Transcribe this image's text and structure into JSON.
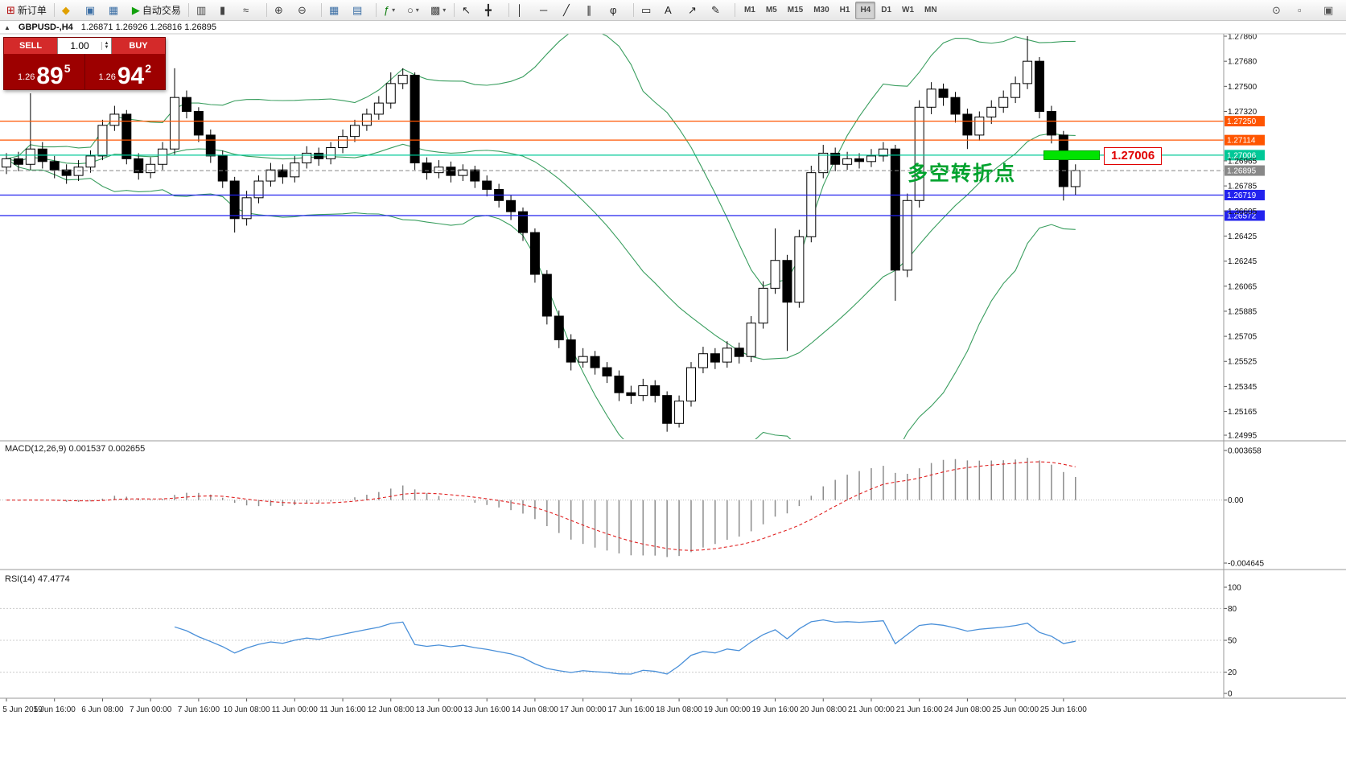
{
  "toolbar": {
    "groups": [
      {
        "items": [
          {
            "name": "new-order-button",
            "glyph": "⊞",
            "glyph_color": "#b00000",
            "label": "新订单"
          }
        ]
      },
      {
        "items": [
          {
            "name": "community-icon",
            "glyph": "◆",
            "glyph_color": "#e0a000"
          },
          {
            "name": "profiles-icon",
            "glyph": "▣",
            "glyph_color": "#3a6ea5"
          },
          {
            "name": "data-window-icon",
            "glyph": "▦",
            "glyph_color": "#3a6ea5"
          },
          {
            "name": "auto-trading-button",
            "glyph": "▶",
            "glyph_color": "#13a10e",
            "label": "自动交易"
          }
        ]
      },
      {
        "items": [
          {
            "name": "bar-chart-icon",
            "glyph": "▥",
            "glyph_color": "#444444"
          },
          {
            "name": "candlestick-chart-icon",
            "glyph": "▮",
            "glyph_color": "#444444"
          },
          {
            "name": "line-chart-icon",
            "glyph": "≈",
            "glyph_color": "#444444"
          }
        ]
      },
      {
        "items": [
          {
            "name": "zoom-in-icon",
            "glyph": "⊕",
            "glyph_color": "#444444"
          },
          {
            "name": "zoom-out-icon",
            "glyph": "⊖",
            "glyph_color": "#444444"
          }
        ]
      },
      {
        "items": [
          {
            "name": "tile-windows-icon",
            "glyph": "▦",
            "glyph_color": "#3a6ea5"
          },
          {
            "name": "cascade-windows-icon",
            "glyph": "▤",
            "glyph_color": "#3a6ea5"
          }
        ]
      },
      {
        "items": [
          {
            "name": "indicators-icon",
            "glyph": "ƒ",
            "glyph_color": "#0a7a0a",
            "caret": true
          },
          {
            "name": "periods-icon",
            "glyph": "○",
            "glyph_color": "#444444",
            "caret": true
          },
          {
            "name": "templates-icon",
            "glyph": "▩",
            "glyph_color": "#444444",
            "caret": true
          }
        ]
      },
      {
        "items": [
          {
            "name": "cursor-icon",
            "glyph": "↖",
            "glyph_color": "#222222"
          },
          {
            "name": "crosshair-icon",
            "glyph": "╋",
            "glyph_color": "#222222"
          }
        ]
      },
      {
        "items": [
          {
            "name": "vertical-line-icon",
            "glyph": "│",
            "glyph_color": "#222222"
          },
          {
            "name": "horizontal-line-icon",
            "glyph": "─",
            "glyph_color": "#222222"
          },
          {
            "name": "trendline-icon",
            "glyph": "╱",
            "glyph_color": "#222222"
          },
          {
            "name": "equidistant-channel-icon",
            "glyph": "∥",
            "glyph_color": "#222222"
          },
          {
            "name": "fibonacci-icon",
            "glyph": "φ",
            "glyph_color": "#222222"
          }
        ]
      },
      {
        "items": [
          {
            "name": "shapes-icon",
            "glyph": "▭",
            "glyph_color": "#222222"
          },
          {
            "name": "text-icon",
            "glyph": "A",
            "glyph_color": "#222222"
          },
          {
            "name": "arrows-icon",
            "glyph": "↗",
            "glyph_color": "#222222"
          },
          {
            "name": "draw-icon",
            "glyph": "✎",
            "glyph_color": "#222222"
          }
        ]
      }
    ],
    "timeframes": [
      "M1",
      "M5",
      "M15",
      "M30",
      "H1",
      "H4",
      "D1",
      "W1",
      "MN"
    ],
    "active_timeframe": "H4",
    "right_icons": [
      {
        "name": "search-icon",
        "glyph": "⊙"
      },
      {
        "name": "panel-toggle-icon",
        "glyph": "▫"
      },
      {
        "name": "settings-icon",
        "glyph": "▣"
      }
    ]
  },
  "quote_header": {
    "collapse_glyph": "▲",
    "symbol": "GBPUSD-,H4",
    "ohlc": "1.26871 1.26926 1.26816 1.26895"
  },
  "trade_panel": {
    "sell_label": "SELL",
    "buy_label": "BUY",
    "lot": "1.00",
    "spin_up": "▲",
    "spin_down": "▼",
    "sell_small": "1.26",
    "sell_big": "89",
    "sell_sup": "5",
    "buy_small": "1.26",
    "buy_big": "94",
    "buy_sup": "2"
  },
  "annotations": {
    "turning_point_text": "多空转折点",
    "price_callout": "1.27006"
  },
  "macd_panel": {
    "label": "MACD(12,26,9) 0.001537 0.002655",
    "axis": [
      {
        "v": 0.003658,
        "t": "0.003658"
      },
      {
        "v": 0,
        "t": "0.00"
      },
      {
        "v": -0.004645,
        "t": "-0.004645"
      }
    ]
  },
  "rsi_panel": {
    "label": "RSI(14) 47.4774",
    "axis": [
      {
        "v": 100,
        "t": "100"
      },
      {
        "v": 80,
        "t": "80"
      },
      {
        "v": 50,
        "t": "50"
      },
      {
        "v": 20,
        "t": "20"
      },
      {
        "v": 0,
        "t": "0"
      }
    ],
    "levels": [
      80,
      50,
      20
    ]
  },
  "chart_data": {
    "type": "candlestick",
    "symbol": "GBPUSD-",
    "timeframe": "H4",
    "colors": {
      "bull": "#ffffff",
      "bear": "#000000",
      "outline": "#000000",
      "bollinger": "#3a9e5f",
      "macd_hist": "#8c8c8c",
      "macd_signal": "#e02020",
      "rsi_line": "#4a90d9",
      "current_price": "#888888"
    },
    "axis_labels": [
      "1.27860",
      "1.27680",
      "1.27500",
      "1.27320",
      "1.26965",
      "1.26785",
      "1.26605",
      "1.26425",
      "1.26245",
      "1.26065",
      "1.25885",
      "1.25705",
      "1.25525",
      "1.25345",
      "1.25165",
      "1.24995"
    ],
    "hlines": [
      {
        "price": 1.2725,
        "color": "#ff5500",
        "tag": "1.27250",
        "style": "solid"
      },
      {
        "price": 1.27114,
        "color": "#ff5500",
        "tag": "1.27114",
        "style": "solid"
      },
      {
        "price": 1.27006,
        "color": "#00c897",
        "tag": "1.27006",
        "style": "solid"
      },
      {
        "price": 1.26895,
        "color": "#888888",
        "tag": "1.26895",
        "style": "current"
      },
      {
        "price": 1.26719,
        "color": "#2222ee",
        "tag": "1.26719",
        "style": "solid"
      },
      {
        "price": 1.26572,
        "color": "#2222ee",
        "tag": "1.26572",
        "style": "solid"
      }
    ],
    "time_labels": [
      "5 Jun 2019",
      "5 Jun 16:00",
      "6 Jun 08:00",
      "7 Jun 00:00",
      "7 Jun 16:00",
      "10 Jun 08:00",
      "11 Jun 00:00",
      "11 Jun 16:00",
      "12 Jun 08:00",
      "13 Jun 00:00",
      "13 Jun 16:00",
      "14 Jun 08:00",
      "17 Jun 00:00",
      "17 Jun 16:00",
      "18 Jun 08:00",
      "19 Jun 00:00",
      "19 Jun 16:00",
      "20 Jun 08:00",
      "21 Jun 00:00",
      "21 Jun 16:00",
      "24 Jun 08:00",
      "25 Jun 00:00",
      "25 Jun 16:00"
    ],
    "bollinger": {
      "period": 20,
      "deviation": 2
    },
    "macd_params": [
      12,
      26,
      9
    ],
    "rsi_period": 14,
    "candles": [
      [
        1.2692,
        1.2702,
        1.2687,
        1.2698
      ],
      [
        1.2698,
        1.2703,
        1.2689,
        1.2694
      ],
      [
        1.2694,
        1.2745,
        1.269,
        1.2705
      ],
      [
        1.2705,
        1.271,
        1.2691,
        1.2696
      ],
      [
        1.2696,
        1.27,
        1.2684,
        1.269
      ],
      [
        1.269,
        1.2694,
        1.268,
        1.2686
      ],
      [
        1.2686,
        1.2697,
        1.2682,
        1.2692
      ],
      [
        1.2692,
        1.2704,
        1.2688,
        1.27
      ],
      [
        1.27,
        1.2726,
        1.2697,
        1.2722
      ],
      [
        1.2722,
        1.2736,
        1.2718,
        1.273
      ],
      [
        1.273,
        1.2733,
        1.2694,
        1.2698
      ],
      [
        1.2698,
        1.2702,
        1.2683,
        1.2688
      ],
      [
        1.2688,
        1.2699,
        1.2684,
        1.2694
      ],
      [
        1.2694,
        1.271,
        1.269,
        1.2705
      ],
      [
        1.2705,
        1.2763,
        1.2701,
        1.2742
      ],
      [
        1.2742,
        1.2747,
        1.2727,
        1.2732
      ],
      [
        1.2732,
        1.2735,
        1.271,
        1.2715
      ],
      [
        1.2715,
        1.2719,
        1.2695,
        1.27
      ],
      [
        1.27,
        1.2704,
        1.2677,
        1.2682
      ],
      [
        1.2682,
        1.2685,
        1.2645,
        1.2655
      ],
      [
        1.2655,
        1.2675,
        1.265,
        1.267
      ],
      [
        1.267,
        1.2686,
        1.2666,
        1.2682
      ],
      [
        1.2682,
        1.2695,
        1.2678,
        1.269
      ],
      [
        1.269,
        1.2694,
        1.268,
        1.2685
      ],
      [
        1.2685,
        1.27,
        1.2681,
        1.2695
      ],
      [
        1.2695,
        1.2707,
        1.2691,
        1.2702
      ],
      [
        1.2702,
        1.2706,
        1.2693,
        1.2698
      ],
      [
        1.2698,
        1.271,
        1.2694,
        1.2706
      ],
      [
        1.2706,
        1.2719,
        1.2702,
        1.2714
      ],
      [
        1.2714,
        1.2726,
        1.271,
        1.2722
      ],
      [
        1.2722,
        1.2734,
        1.2718,
        1.273
      ],
      [
        1.273,
        1.2743,
        1.2726,
        1.2738
      ],
      [
        1.2738,
        1.276,
        1.2734,
        1.2752
      ],
      [
        1.2752,
        1.2763,
        1.2748,
        1.2758
      ],
      [
        1.2758,
        1.276,
        1.269,
        1.2695
      ],
      [
        1.2695,
        1.2699,
        1.2683,
        1.2688
      ],
      [
        1.2688,
        1.2697,
        1.2684,
        1.2692
      ],
      [
        1.2692,
        1.2696,
        1.2681,
        1.2686
      ],
      [
        1.2686,
        1.2694,
        1.2682,
        1.269
      ],
      [
        1.269,
        1.2693,
        1.2677,
        1.2682
      ],
      [
        1.2682,
        1.2686,
        1.2671,
        1.2676
      ],
      [
        1.2676,
        1.268,
        1.2663,
        1.2668
      ],
      [
        1.2668,
        1.2672,
        1.2654,
        1.266
      ],
      [
        1.266,
        1.2663,
        1.2639,
        1.2645
      ],
      [
        1.2645,
        1.2648,
        1.2609,
        1.2615
      ],
      [
        1.2615,
        1.2618,
        1.2579,
        1.2585
      ],
      [
        1.2585,
        1.2589,
        1.2562,
        1.2568
      ],
      [
        1.2568,
        1.2572,
        1.2546,
        1.2552
      ],
      [
        1.2552,
        1.2562,
        1.2548,
        1.2556
      ],
      [
        1.2556,
        1.256,
        1.2543,
        1.2548
      ],
      [
        1.2548,
        1.2552,
        1.2537,
        1.2542
      ],
      [
        1.2542,
        1.2546,
        1.2524,
        1.253
      ],
      [
        1.253,
        1.2535,
        1.2522,
        1.2528
      ],
      [
        1.2528,
        1.254,
        1.2524,
        1.2535
      ],
      [
        1.2535,
        1.2539,
        1.2523,
        1.2528
      ],
      [
        1.2528,
        1.2531,
        1.2502,
        1.2508
      ],
      [
        1.2508,
        1.2528,
        1.2505,
        1.2524
      ],
      [
        1.2524,
        1.2552,
        1.252,
        1.2548
      ],
      [
        1.2548,
        1.2563,
        1.2544,
        1.2558
      ],
      [
        1.2558,
        1.2562,
        1.2547,
        1.2552
      ],
      [
        1.2552,
        1.2567,
        1.2548,
        1.2562
      ],
      [
        1.2562,
        1.2566,
        1.2551,
        1.2556
      ],
      [
        1.2556,
        1.2585,
        1.2552,
        1.258
      ],
      [
        1.258,
        1.261,
        1.2576,
        1.2605
      ],
      [
        1.2605,
        1.2648,
        1.2601,
        1.2625
      ],
      [
        1.2625,
        1.2629,
        1.256,
        1.2595
      ],
      [
        1.2595,
        1.2647,
        1.2591,
        1.2642
      ],
      [
        1.2642,
        1.2693,
        1.2638,
        1.2688
      ],
      [
        1.2688,
        1.2708,
        1.2684,
        1.2702
      ],
      [
        1.2702,
        1.2706,
        1.2689,
        1.2694
      ],
      [
        1.2694,
        1.2703,
        1.269,
        1.2698
      ],
      [
        1.2698,
        1.2702,
        1.2691,
        1.2696
      ],
      [
        1.2696,
        1.2705,
        1.2692,
        1.27
      ],
      [
        1.27,
        1.271,
        1.2696,
        1.2705
      ],
      [
        1.2705,
        1.2708,
        1.2596,
        1.2618
      ],
      [
        1.2618,
        1.2673,
        1.2613,
        1.2668
      ],
      [
        1.2668,
        1.274,
        1.2663,
        1.2735
      ],
      [
        1.2735,
        1.2753,
        1.273,
        1.2748
      ],
      [
        1.2748,
        1.2752,
        1.2736,
        1.2742
      ],
      [
        1.2742,
        1.2746,
        1.2724,
        1.273
      ],
      [
        1.273,
        1.2734,
        1.2705,
        1.2715
      ],
      [
        1.2715,
        1.2732,
        1.2711,
        1.2728
      ],
      [
        1.2728,
        1.274,
        1.2723,
        1.2735
      ],
      [
        1.2735,
        1.2747,
        1.2731,
        1.2742
      ],
      [
        1.2742,
        1.2757,
        1.2738,
        1.2752
      ],
      [
        1.2752,
        1.2786,
        1.2748,
        1.2768
      ],
      [
        1.2768,
        1.2771,
        1.2727,
        1.2732
      ],
      [
        1.2732,
        1.2736,
        1.2709,
        1.2715
      ],
      [
        1.2715,
        1.2718,
        1.2668,
        1.2678
      ],
      [
        1.2678,
        1.2694,
        1.2672,
        1.26895
      ]
    ]
  }
}
